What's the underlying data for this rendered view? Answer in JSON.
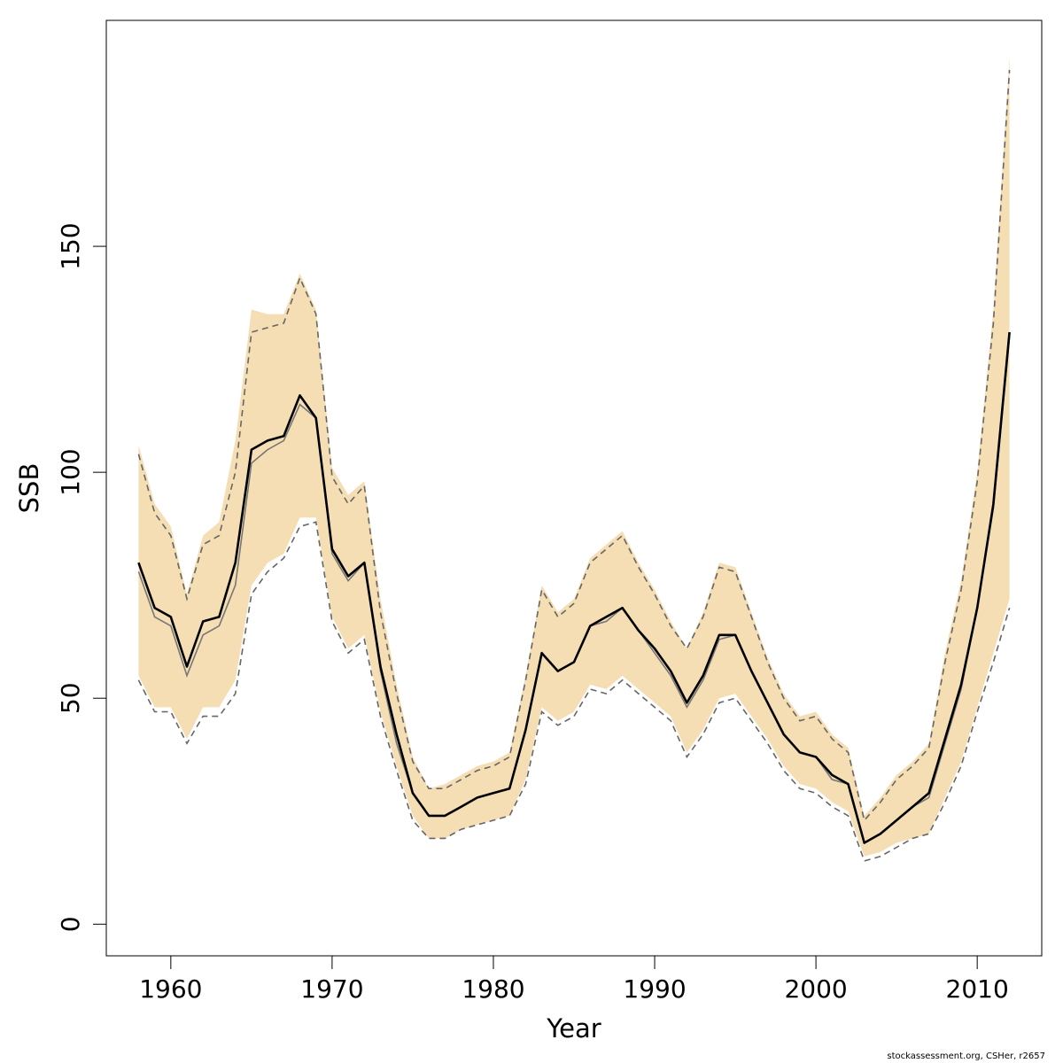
{
  "chart_data": {
    "type": "area",
    "title": "",
    "xlabel": "Year",
    "ylabel": "SSB",
    "xlim": [
      1956,
      2014
    ],
    "ylim": [
      -7,
      200
    ],
    "x_ticks": [
      1960,
      1970,
      1980,
      1990,
      2000,
      2010
    ],
    "y_ticks": [
      0,
      50,
      100,
      150
    ],
    "grid": false,
    "legend": "none",
    "band_color": "#f5deb3",
    "x": [
      1958,
      1959,
      1960,
      1961,
      1962,
      1963,
      1964,
      1965,
      1966,
      1967,
      1968,
      1969,
      1970,
      1971,
      1972,
      1973,
      1974,
      1975,
      1976,
      1977,
      1978,
      1979,
      1980,
      1981,
      1982,
      1983,
      1984,
      1985,
      1986,
      1987,
      1988,
      1989,
      1990,
      1991,
      1992,
      1993,
      1994,
      1995,
      1996,
      1997,
      1998,
      1999,
      2000,
      2001,
      2002,
      2003,
      2004,
      2005,
      2006,
      2007,
      2008,
      2009,
      2010,
      2011,
      2012
    ],
    "series": [
      {
        "name": "",
        "role": "band-upper",
        "values": [
          106,
          93,
          88,
          73,
          86,
          89,
          107,
          136,
          135,
          135,
          144,
          136,
          101,
          95,
          98,
          72,
          53,
          37,
          30,
          31,
          33,
          35,
          36,
          38,
          55,
          75,
          69,
          72,
          81,
          84,
          87,
          80,
          74,
          67,
          61,
          69,
          80,
          79,
          69,
          59,
          51,
          46,
          47,
          42,
          39,
          24,
          28,
          33,
          36,
          40,
          60,
          76,
          100,
          136,
          192
        ]
      },
      {
        "name": "",
        "role": "band-lower",
        "values": [
          55,
          48,
          48,
          41,
          48,
          48,
          54,
          75,
          80,
          82,
          90,
          90,
          68,
          61,
          64,
          47,
          35,
          24,
          19,
          19,
          21,
          22,
          23,
          24,
          32,
          48,
          45,
          47,
          53,
          52,
          55,
          52,
          49,
          46,
          38,
          43,
          50,
          51,
          46,
          41,
          35,
          31,
          30,
          27,
          25,
          15,
          16,
          18,
          19,
          20,
          28,
          36,
          48,
          60,
          72
        ]
      },
      {
        "name": "",
        "role": "upper-ci",
        "values": [
          104,
          91,
          86,
          72,
          84,
          86,
          100,
          131,
          132,
          133,
          143,
          135,
          99,
          93,
          97,
          69,
          51,
          36,
          30,
          30,
          32,
          34,
          35,
          37,
          54,
          74,
          68,
          71,
          80,
          83,
          86,
          79,
          73,
          66,
          61,
          68,
          79,
          78,
          68,
          58,
          50,
          45,
          46,
          41,
          38,
          23,
          27,
          32,
          35,
          39,
          58,
          74,
          98,
          133,
          189
        ]
      },
      {
        "name": "",
        "role": "lower-ci",
        "values": [
          54,
          47,
          47,
          40,
          46,
          46,
          51,
          73,
          78,
          81,
          88,
          89,
          67,
          60,
          63,
          46,
          34,
          23,
          19,
          19,
          21,
          22,
          23,
          24,
          31,
          47,
          44,
          46,
          52,
          51,
          54,
          51,
          48,
          45,
          37,
          42,
          49,
          50,
          45,
          40,
          34,
          30,
          29,
          26,
          24,
          14,
          15,
          17,
          19,
          20,
          27,
          35,
          47,
          58,
          70
        ]
      },
      {
        "name": "",
        "role": "estimate-thin",
        "values": [
          78,
          68,
          66,
          55,
          64,
          66,
          75,
          102,
          105,
          107,
          115,
          112,
          82,
          76,
          80,
          56,
          40,
          29,
          24,
          24,
          26,
          28,
          29,
          30,
          43,
          60,
          56,
          58,
          66,
          67,
          70,
          65,
          60,
          55,
          48,
          54,
          63,
          64,
          56,
          49,
          42,
          38,
          37,
          32,
          31,
          18,
          20,
          23,
          26,
          28,
          40,
          52,
          70,
          92,
          130
        ]
      },
      {
        "name": "",
        "role": "estimate",
        "values": [
          80,
          70,
          68,
          57,
          67,
          68,
          80,
          105,
          107,
          108,
          117,
          112,
          83,
          77,
          80,
          57,
          42,
          29,
          24,
          24,
          26,
          28,
          29,
          30,
          43,
          60,
          56,
          58,
          66,
          68,
          70,
          65,
          61,
          56,
          49,
          55,
          64,
          64,
          56,
          49,
          42,
          38,
          37,
          33,
          31,
          18,
          20,
          23,
          26,
          29,
          41,
          53,
          70,
          93,
          131
        ]
      }
    ]
  },
  "footer": {
    "credit": "stockassessment.org, CSHer, r2657"
  }
}
